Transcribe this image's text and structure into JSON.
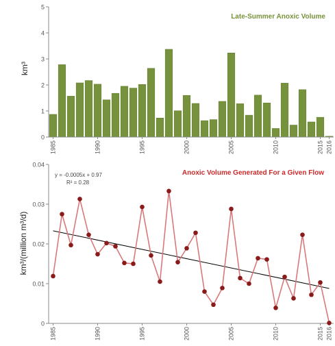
{
  "colors": {
    "bar_fill": "#76923c",
    "bar_stroke": "#5f7a2c",
    "volume_title": "#76923c",
    "line": "#d9787b",
    "marker": "#8b1a1a",
    "flow_title": "#cc2a2a",
    "trend": "#000000",
    "axis": "#888888",
    "tick_text": "#555555"
  },
  "chart_data": [
    {
      "type": "bar",
      "title": "Late-Summer Anoxic Volume",
      "ylabel": "km³",
      "xlabel": "",
      "ylim": [
        0,
        5
      ],
      "yticks": [
        "0",
        "1",
        "2",
        "3",
        "4",
        "5"
      ],
      "xtick_labels": [
        "1985",
        "1990",
        "1995",
        "2000",
        "2005",
        "2010",
        "2015",
        "2016"
      ],
      "grid": false,
      "x": [
        1985,
        1986,
        1987,
        1988,
        1989,
        1990,
        1991,
        1992,
        1993,
        1994,
        1995,
        1996,
        1997,
        1998,
        1999,
        2000,
        2001,
        2002,
        2003,
        2004,
        2005,
        2006,
        2007,
        2008,
        2009,
        2010,
        2011,
        2012,
        2013,
        2014,
        2015,
        2016
      ],
      "values": [
        0.87,
        2.78,
        1.57,
        2.08,
        2.17,
        2.03,
        1.43,
        1.68,
        1.95,
        1.88,
        2.02,
        2.64,
        0.73,
        3.37,
        1.01,
        1.6,
        1.29,
        0.63,
        0.67,
        1.37,
        3.23,
        1.28,
        0.84,
        1.61,
        1.31,
        0.33,
        2.07,
        0.46,
        1.82,
        0.58,
        0.76,
        0.03
      ]
    },
    {
      "type": "line",
      "title": "Anoxic Volume Generated For a Given Flow",
      "ylabel": "km³/(million m³/d)",
      "xlabel": "",
      "ylim": [
        0,
        0.04
      ],
      "yticks": [
        "0",
        "0.01",
        "0.02",
        "0.03",
        "0.04"
      ],
      "xtick_labels": [
        "1985",
        "1990",
        "1995",
        "2000",
        "2005",
        "2010",
        "2015",
        "2016"
      ],
      "grid": false,
      "equation": "y = -0.0005x + 0.97",
      "r_squared": "R² = 0.28",
      "trendline": {
        "x": [
          1985,
          2016
        ],
        "y": [
          0.0233,
          0.0088
        ]
      },
      "x": [
        1985,
        1986,
        1987,
        1988,
        1989,
        1990,
        1991,
        1992,
        1993,
        1994,
        1995,
        1996,
        1997,
        1998,
        1999,
        2000,
        2001,
        2002,
        2003,
        2004,
        2005,
        2006,
        2007,
        2008,
        2009,
        2010,
        2011,
        2012,
        2013,
        2014,
        2015,
        2016
      ],
      "values": [
        0.0119,
        0.0275,
        0.0197,
        0.0313,
        0.0223,
        0.0174,
        0.0202,
        0.0194,
        0.0152,
        0.015,
        0.0293,
        0.0171,
        0.0105,
        0.0333,
        0.0154,
        0.0189,
        0.0228,
        0.008,
        0.0047,
        0.0089,
        0.0288,
        0.0114,
        0.01,
        0.0164,
        0.0161,
        0.0039,
        0.0117,
        0.0063,
        0.0223,
        0.0072,
        0.0103,
        0.0001
      ]
    }
  ]
}
